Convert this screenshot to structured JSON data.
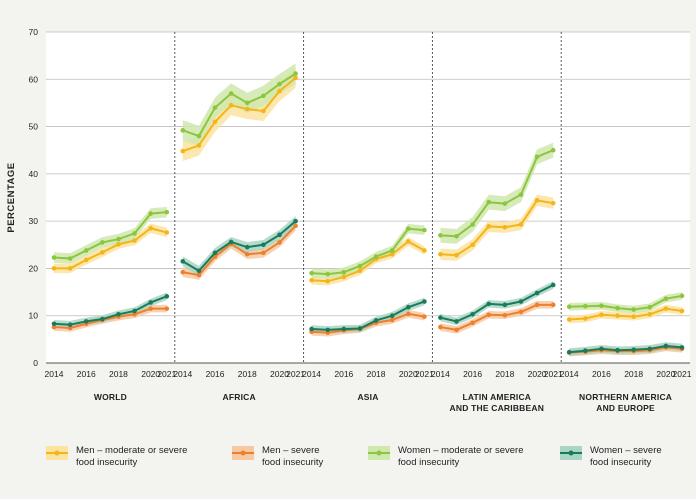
{
  "chart_data": {
    "type": "line",
    "ylabel": "PERCENTAGE",
    "ylim": [
      0,
      70
    ],
    "yticks": [
      0,
      10,
      20,
      30,
      40,
      50,
      60,
      70
    ],
    "x": [
      2014,
      2015,
      2016,
      2017,
      2018,
      2019,
      2020,
      2021
    ],
    "xtick_labels": [
      "2014",
      "2016",
      "2018",
      "2020",
      "2021"
    ],
    "grid": true,
    "legend_position": "bottom",
    "colors": {
      "men_moderate_severe": "#f4b41a",
      "men_severe": "#ee7f2d",
      "women_moderate_severe": "#8cc63f",
      "women_severe": "#1b7a5a",
      "men_moderate_severe_band": "#fbe3a0",
      "men_severe_band": "#f7c9a3",
      "women_moderate_severe_band": "#cfe8ad",
      "women_severe_band": "#a9d6c4"
    },
    "legend": [
      {
        "key": "men_moderate_severe",
        "label_line1": "Men – moderate or severe",
        "label_line2": "food insecurity"
      },
      {
        "key": "men_severe",
        "label_line1": "Men – severe",
        "label_line2": "food insecurity"
      },
      {
        "key": "women_moderate_severe",
        "label_line1": "Women – moderate or severe",
        "label_line2": "food insecurity"
      },
      {
        "key": "women_severe",
        "label_line1": "Women – severe",
        "label_line2": "food insecurity"
      }
    ],
    "panels": [
      {
        "title_line1": "WORLD",
        "title_line2": "",
        "series": {
          "men_moderate_severe": [
            20.0,
            20.0,
            21.8,
            23.4,
            25.1,
            25.9,
            28.5,
            27.6
          ],
          "men_severe": [
            7.6,
            7.4,
            8.3,
            9.1,
            9.8,
            10.3,
            11.5,
            11.5
          ],
          "women_moderate_severe": [
            22.3,
            22.1,
            23.8,
            25.5,
            26.2,
            27.4,
            31.6,
            31.9
          ],
          "women_severe": [
            8.3,
            8.1,
            8.8,
            9.3,
            10.3,
            11.0,
            12.8,
            14.1
          ]
        }
      },
      {
        "title_line1": "AFRICA",
        "title_line2": "",
        "series": {
          "men_moderate_severe": [
            44.8,
            46.0,
            51.0,
            54.5,
            53.7,
            53.3,
            57.5,
            60.3
          ],
          "men_severe": [
            19.2,
            18.6,
            22.5,
            25.2,
            23.0,
            23.3,
            25.5,
            29.0
          ],
          "women_moderate_severe": [
            49.2,
            48.0,
            54.0,
            57.0,
            55.0,
            56.5,
            59.0,
            61.2
          ],
          "women_severe": [
            21.5,
            19.5,
            23.3,
            25.6,
            24.5,
            25.0,
            27.1,
            30.0
          ]
        }
      },
      {
        "title_line1": "ASIA",
        "title_line2": "",
        "series": {
          "men_moderate_severe": [
            17.5,
            17.3,
            18.2,
            19.5,
            22.0,
            23.0,
            25.7,
            23.8
          ],
          "men_severe": [
            6.6,
            6.4,
            6.9,
            7.2,
            8.5,
            9.1,
            10.4,
            9.8
          ],
          "women_moderate_severe": [
            19.0,
            18.8,
            19.2,
            20.5,
            22.5,
            23.8,
            28.4,
            28.1
          ],
          "women_severe": [
            7.2,
            7.0,
            7.2,
            7.3,
            9.0,
            10.0,
            11.8,
            13.0
          ]
        }
      },
      {
        "title_line1": "LATIN AMERICA",
        "title_line2": "AND THE CARIBBEAN",
        "series": {
          "men_moderate_severe": [
            23.0,
            22.8,
            25.0,
            28.9,
            28.7,
            29.3,
            34.4,
            33.8
          ],
          "men_severe": [
            7.6,
            7.0,
            8.5,
            10.2,
            10.1,
            10.8,
            12.3,
            12.3
          ],
          "women_moderate_severe": [
            27.0,
            26.8,
            29.3,
            34.0,
            33.7,
            35.6,
            43.6,
            45.0
          ],
          "women_severe": [
            9.6,
            8.8,
            10.3,
            12.5,
            12.3,
            13.0,
            14.8,
            16.5
          ]
        }
      },
      {
        "title_line1": "NORTHERN AMERICA",
        "title_line2": "AND EUROPE",
        "series": {
          "men_moderate_severe": [
            9.2,
            9.4,
            10.2,
            10.0,
            9.8,
            10.3,
            11.5,
            11.0
          ],
          "men_severe": [
            2.2,
            2.4,
            2.7,
            2.5,
            2.5,
            2.7,
            3.3,
            3.0
          ],
          "women_moderate_severe": [
            11.9,
            12.0,
            12.1,
            11.6,
            11.3,
            11.8,
            13.6,
            14.2
          ],
          "women_severe": [
            2.3,
            2.6,
            3.0,
            2.7,
            2.8,
            3.0,
            3.6,
            3.3
          ]
        }
      }
    ]
  }
}
